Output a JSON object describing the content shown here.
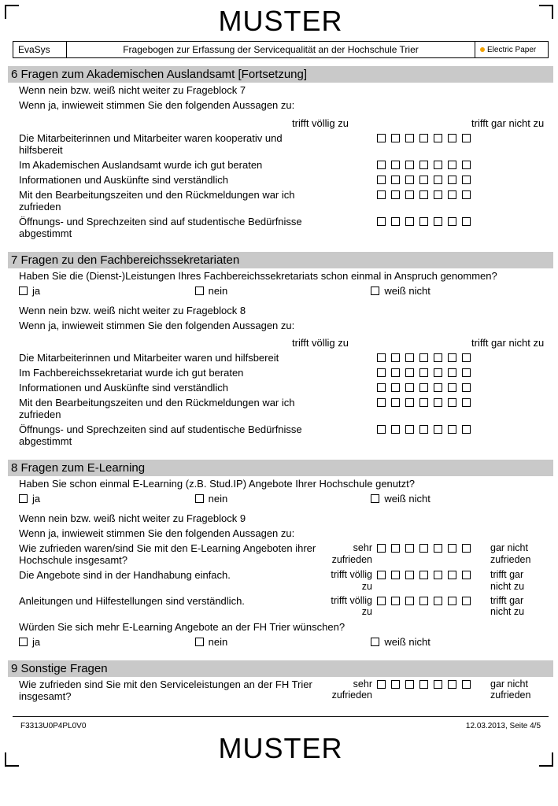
{
  "watermark": "MUSTER",
  "header": {
    "system": "EvaSys",
    "title": "Fragebogen zur Erfassung der Servicequalität an der Hochschule Trier",
    "brand": "Electric Paper"
  },
  "colors": {
    "section_bg": "#c9c9c9",
    "box_border": "#000000",
    "brand_dot": "#f0a000"
  },
  "sections": [
    {
      "number": "6",
      "title": "Fragen zum Akademischen Auslandsamt   [Fortsetzung]",
      "intro": [
        "Wenn nein bzw. weiß nicht weiter zu Frageblock 7",
        "Wenn ja, inwieweit stimmen Sie den folgenden Aussagen zu:"
      ],
      "scale_left": "trifft völlig zu",
      "scale_right": "trifft gar nicht zu",
      "items": [
        "Die Mitarbeiterinnen und Mitarbeiter waren kooperativ und hilfsbereit",
        "Im Akademischen Auslandsamt wurde ich gut beraten",
        "Informationen und Auskünfte sind verständlich",
        "Mit den Bearbeitungszeiten und den Rückmeldungen war ich zufrieden",
        "Öffnungs- und Sprechzeiten sind auf studentische Bedürfnisse abgestimmt"
      ]
    },
    {
      "number": "7",
      "title": "Fragen zu den Fachbereichssekretariaten",
      "lead_question": "Haben Sie die (Dienst-)Leistungen Ihres Fachbereichssekretariats schon einmal in Anspruch genommen?",
      "options": [
        "ja",
        "nein",
        "weiß nicht"
      ],
      "intro": [
        "Wenn nein bzw. weiß nicht weiter zu Frageblock 8",
        "Wenn ja, inwieweit stimmen Sie den folgenden Aussagen zu:"
      ],
      "scale_left": "trifft völlig zu",
      "scale_right": "trifft gar nicht zu",
      "items": [
        "Die Mitarbeiterinnen und Mitarbeiter waren und hilfsbereit",
        "Im Fachbereichssekretariat wurde ich gut beraten",
        "Informationen und Auskünfte sind verständlich",
        "Mit den Bearbeitungszeiten und den Rückmeldungen war ich zufrieden",
        "Öffnungs- und Sprechzeiten sind auf studentische Bedürfnisse abgestimmt"
      ]
    },
    {
      "number": "8",
      "title": "Fragen zum E-Learning",
      "lead_question": "Haben Sie schon einmal E-Learning (z.B. Stud.IP) Angebote Ihrer Hochschule genutzt?",
      "options": [
        "ja",
        "nein",
        "weiß nicht"
      ],
      "intro": [
        "Wenn nein bzw. weiß nicht weiter zu Frageblock 9",
        "Wenn ja, inwieweit stimmen Sie den folgenden Aussagen zu:"
      ],
      "custom_items": [
        {
          "q": "Wie zufrieden waren/sind Sie mit den E-Learning Angeboten ihrer Hochschule insgesamt?",
          "left": "sehr zufrieden",
          "right": "gar nicht zufrieden"
        },
        {
          "q": "Die Angebote sind in der Handhabung einfach.",
          "left": "trifft völlig zu",
          "right": "trifft gar nicht zu"
        },
        {
          "q": "Anleitungen und Hilfestellungen sind verständlich.",
          "left": "trifft völlig zu",
          "right": "trifft gar nicht zu"
        }
      ],
      "trailing_question": "Würden Sie sich mehr E-Learning Angebote an der FH Trier wünschen?",
      "trailing_options": [
        "ja",
        "nein",
        "weiß nicht"
      ]
    },
    {
      "number": "9",
      "title": "Sonstige Fragen",
      "custom_items": [
        {
          "q": "Wie zufrieden sind Sie mit den Serviceleistungen an der FH Trier insgesamt?",
          "left": "sehr zufrieden",
          "right": "gar nicht zufrieden"
        }
      ]
    }
  ],
  "footer": {
    "code": "F3313U0P4PL0V0",
    "meta": "12.03.2013, Seite 4/5"
  }
}
